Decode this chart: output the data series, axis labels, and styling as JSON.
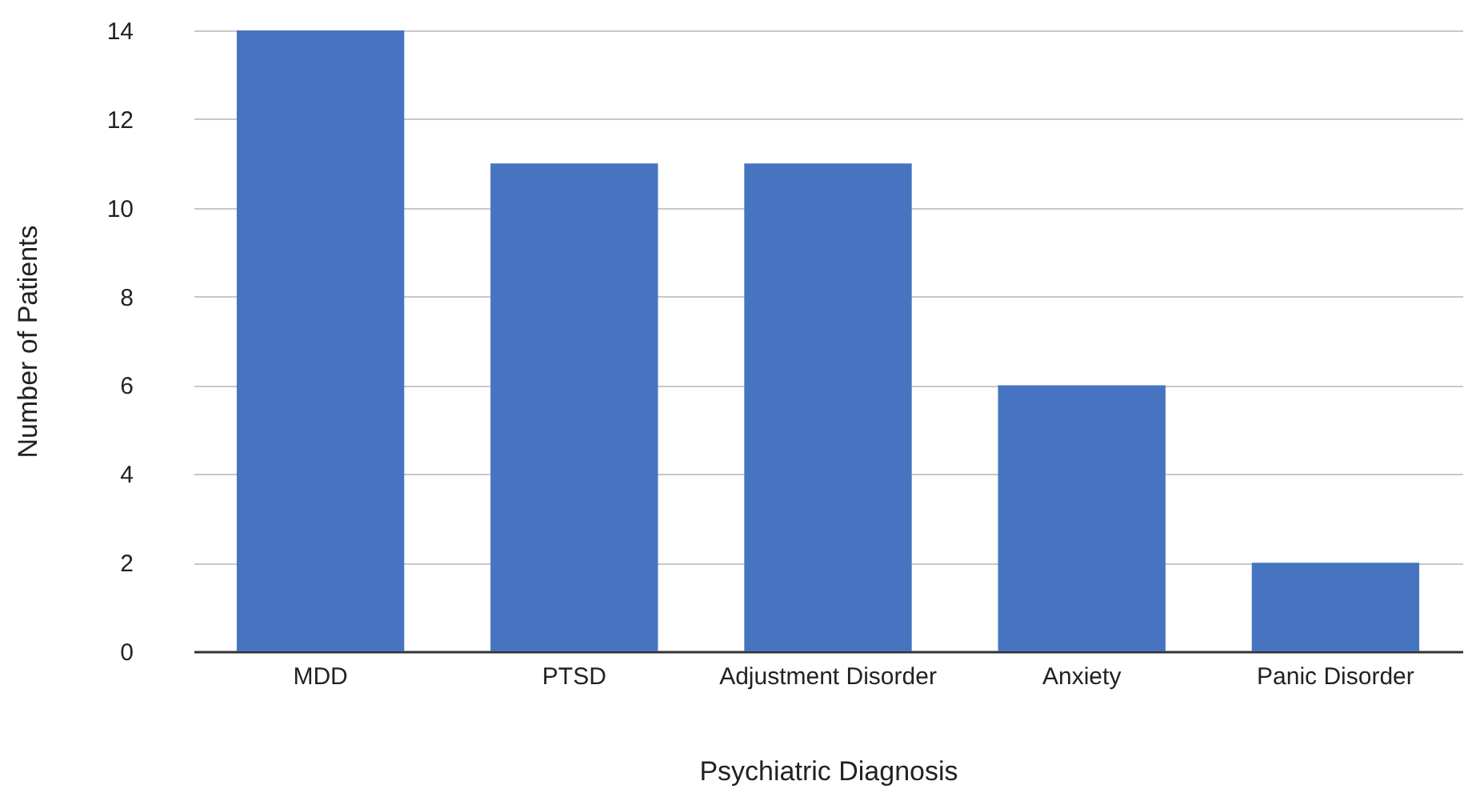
{
  "chart_data": {
    "type": "bar",
    "xlabel": "Psychiatric Diagnosis",
    "ylabel": "Number of Patients",
    "categories": [
      "MDD",
      "PTSD",
      "Adjustment Disorder",
      "Anxiety",
      "Panic Disorder"
    ],
    "values": [
      14,
      11,
      11,
      6,
      2
    ],
    "color": "#4674c1",
    "ylim": [
      0,
      14
    ],
    "yticks": [
      0,
      2,
      4,
      6,
      8,
      10,
      12,
      14
    ],
    "grid": "y"
  }
}
